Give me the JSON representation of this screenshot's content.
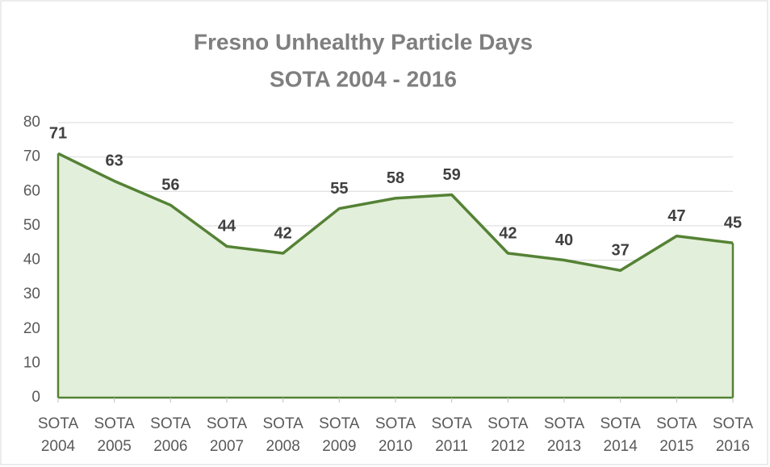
{
  "chart_data": {
    "type": "area",
    "title": "Fresno Unhealthy Particle Days",
    "subtitle": "SOTA 2004 - 2016",
    "categories": [
      "SOTA 2004",
      "SOTA 2005",
      "SOTA 2006",
      "SOTA 2007",
      "SOTA 2008",
      "SOTA 2009",
      "SOTA 2010",
      "SOTA 2011",
      "SOTA 2012",
      "SOTA 2013",
      "SOTA 2014",
      "SOTA 2015",
      "SOTA 2016"
    ],
    "values": [
      71,
      63,
      56,
      44,
      42,
      55,
      58,
      59,
      42,
      40,
      37,
      47,
      45
    ],
    "color": "#548235",
    "fill": "#e2efda",
    "ylim": [
      0,
      80
    ],
    "yticks": [
      0,
      10,
      20,
      30,
      40,
      50,
      60,
      70,
      80
    ],
    "grid": true
  }
}
